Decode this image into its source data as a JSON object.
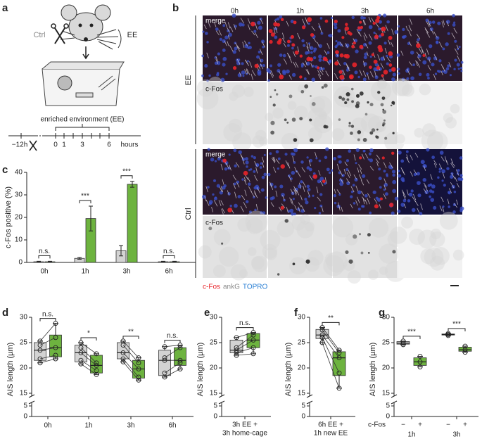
{
  "panel_labels": [
    "a",
    "b",
    "c",
    "d",
    "e",
    "f",
    "g"
  ],
  "schematic": {
    "environment": "enriched environment (EE)",
    "timeline": [
      "−12h",
      "0",
      "1",
      "3",
      "6"
    ],
    "unit": "hours"
  },
  "micrographs": {
    "columns": [
      "0h",
      "1h",
      "3h",
      "6h"
    ],
    "rows": [
      "EE",
      "Ctrl"
    ],
    "panels": [
      "merge",
      "c-Fos"
    ],
    "legend": [
      {
        "text": "c-Fos",
        "color": "#e8252a"
      },
      {
        "text": "ankG",
        "color": "#8a8a8a"
      },
      {
        "text": "TOPRO",
        "color": "#2a7fd4"
      }
    ]
  },
  "chart_data": [
    {
      "type": "bar",
      "y_label": "c-Fos positive (%)",
      "categories": [
        "0h",
        "1h",
        "3h",
        "6h"
      ],
      "series": [
        {
          "name": "Ctrl",
          "color": "#d3d3d3",
          "values": [
            0.3,
            1.8,
            5.2,
            0.3
          ],
          "errors": [
            0.2,
            0.4,
            2.3,
            0.2
          ]
        },
        {
          "name": "EE",
          "color": "#6db33f",
          "values": [
            0.3,
            19.5,
            34.7,
            0.3
          ],
          "errors": [
            0.2,
            5.5,
            1.3,
            0.2
          ]
        }
      ],
      "annotations": [
        "n.s.",
        "***",
        "***",
        "n.s."
      ],
      "ylim": [
        0,
        40
      ],
      "yticks": [
        0,
        10,
        20,
        30,
        40
      ]
    },
    {
      "type": "box",
      "y_label": "AIS length (µm)",
      "categories": [
        "0h",
        "1h",
        "3h",
        "6h"
      ],
      "paired": true,
      "series": [
        {
          "color": "#d3d3d3",
          "boxes": [
            {
              "min": 21,
              "q1": 21.5,
              "median": 23.5,
              "q3": 25,
              "max": 25.3
            },
            {
              "min": 20.8,
              "q1": 21.2,
              "median": 23,
              "q3": 24.5,
              "max": 25
            },
            {
              "min": 21.2,
              "q1": 21.8,
              "median": 23,
              "q3": 25,
              "max": 25.3
            },
            {
              "min": 18.2,
              "q1": 18.5,
              "median": 21.5,
              "q3": 23.5,
              "max": 24.2
            }
          ],
          "points": [
            [
              25.3,
              24.5,
              23.5,
              21.8,
              21
            ],
            [
              25,
              24,
              23,
              21.5,
              20.8
            ],
            [
              25.3,
              24.5,
              23,
              21.8,
              21.2
            ],
            [
              24.2,
              22,
              21.5,
              19,
              18.2
            ]
          ]
        },
        {
          "color": "#6db33f",
          "boxes": [
            {
              "min": 21.8,
              "q1": 22.2,
              "median": 24,
              "q3": 26.5,
              "max": 28.8
            },
            {
              "min": 18.7,
              "q1": 19,
              "median": 20.5,
              "q3": 22.5,
              "max": 22.8
            },
            {
              "min": 17.6,
              "q1": 18,
              "median": 19.8,
              "q3": 21.5,
              "max": 22
            },
            {
              "min": 19.8,
              "q1": 20.5,
              "median": 21.5,
              "q3": 24,
              "max": 24.5
            }
          ],
          "points": [
            [
              28.8,
              26,
              24,
              22.5,
              21.8
            ],
            [
              22.8,
              21,
              20.5,
              19.5,
              18.7
            ],
            [
              22,
              21,
              19.8,
              18.2,
              17.6
            ],
            [
              24.5,
              24,
              21.5,
              21,
              19.8
            ]
          ]
        }
      ],
      "annotations": [
        "n.s.",
        "*",
        "**",
        "n.s."
      ],
      "ylim": [
        0,
        30
      ],
      "ybreak": [
        5,
        15
      ],
      "yticks": [
        0,
        5,
        15,
        20,
        25,
        30
      ]
    },
    {
      "type": "box",
      "y_label": "AIS length (µm)",
      "categories": [
        null
      ],
      "x_label": [
        "3h EE  +",
        "3h home-cage"
      ],
      "paired": true,
      "series": [
        {
          "color": "#d3d3d3",
          "boxes": [
            {
              "min": 22.5,
              "q1": 23,
              "median": 23.5,
              "q3": 25.5,
              "max": 26
            }
          ],
          "points": [
            [
              26,
              24,
              23.5,
              23,
              22.5
            ]
          ]
        },
        {
          "color": "#6db33f",
          "boxes": [
            {
              "min": 22.8,
              "q1": 24,
              "median": 25.5,
              "q3": 26.8,
              "max": 27
            }
          ],
          "points": [
            [
              27,
              26.5,
              25.5,
              24,
              22.8
            ]
          ]
        }
      ],
      "annotations": [
        "n.s."
      ],
      "ylim": [
        0,
        30
      ],
      "ybreak": [
        5,
        15
      ],
      "yticks": [
        0,
        5,
        15,
        20,
        25,
        30
      ]
    },
    {
      "type": "box",
      "y_label": "AIS length (µm)",
      "categories": [
        null
      ],
      "x_label": [
        "6h EE  +",
        "1h new EE"
      ],
      "paired": true,
      "series": [
        {
          "color": "#d3d3d3",
          "boxes": [
            {
              "min": 25,
              "q1": 25.8,
              "median": 26.5,
              "q3": 27.6,
              "max": 28
            }
          ],
          "points": [
            [
              28,
              27.5,
              26.5,
              26,
              25
            ]
          ]
        },
        {
          "color": "#6db33f",
          "boxes": [
            {
              "min": 16,
              "q1": 18.5,
              "median": 22,
              "q3": 23.2,
              "max": 23.5
            }
          ],
          "points": [
            [
              23.5,
              23,
              22,
              19,
              16
            ]
          ]
        }
      ],
      "annotations": [
        "**"
      ],
      "ylim": [
        0,
        30
      ],
      "ybreak": [
        5,
        15
      ],
      "yticks": [
        0,
        5,
        15,
        20,
        25,
        30
      ]
    },
    {
      "type": "box",
      "y_label": "AIS length (µm)",
      "categories": [
        "1h",
        "3h"
      ],
      "row_label": "c-Fos",
      "paired": false,
      "series": [
        {
          "name": "−",
          "color": "#d3d3d3",
          "boxes": [
            {
              "min": 24.6,
              "q1": 24.7,
              "median": 24.9,
              "q3": 25.2,
              "max": 25.3
            },
            {
              "min": 26.4,
              "q1": 26.5,
              "median": 26.6,
              "q3": 26.7,
              "max": 26.8
            }
          ],
          "points": [
            [
              25.3,
              24.9,
              24.6
            ],
            [
              26.8,
              26.6,
              26.4
            ]
          ]
        },
        {
          "name": "+",
          "color": "#6db33f",
          "boxes": [
            {
              "min": 20.2,
              "q1": 20.5,
              "median": 21.2,
              "q3": 22,
              "max": 22.3
            },
            {
              "min": 23.1,
              "q1": 23.3,
              "median": 23.6,
              "q3": 24.1,
              "max": 24.3
            }
          ],
          "points": [
            [
              22.3,
              21.2,
              20.2
            ],
            [
              24.3,
              23.6,
              23.1
            ]
          ]
        }
      ],
      "annotations": [
        "***",
        "***"
      ],
      "ylim": [
        0,
        30
      ],
      "ybreak": [
        5,
        15
      ],
      "yticks": [
        0,
        5,
        15,
        20,
        25,
        30
      ]
    }
  ]
}
